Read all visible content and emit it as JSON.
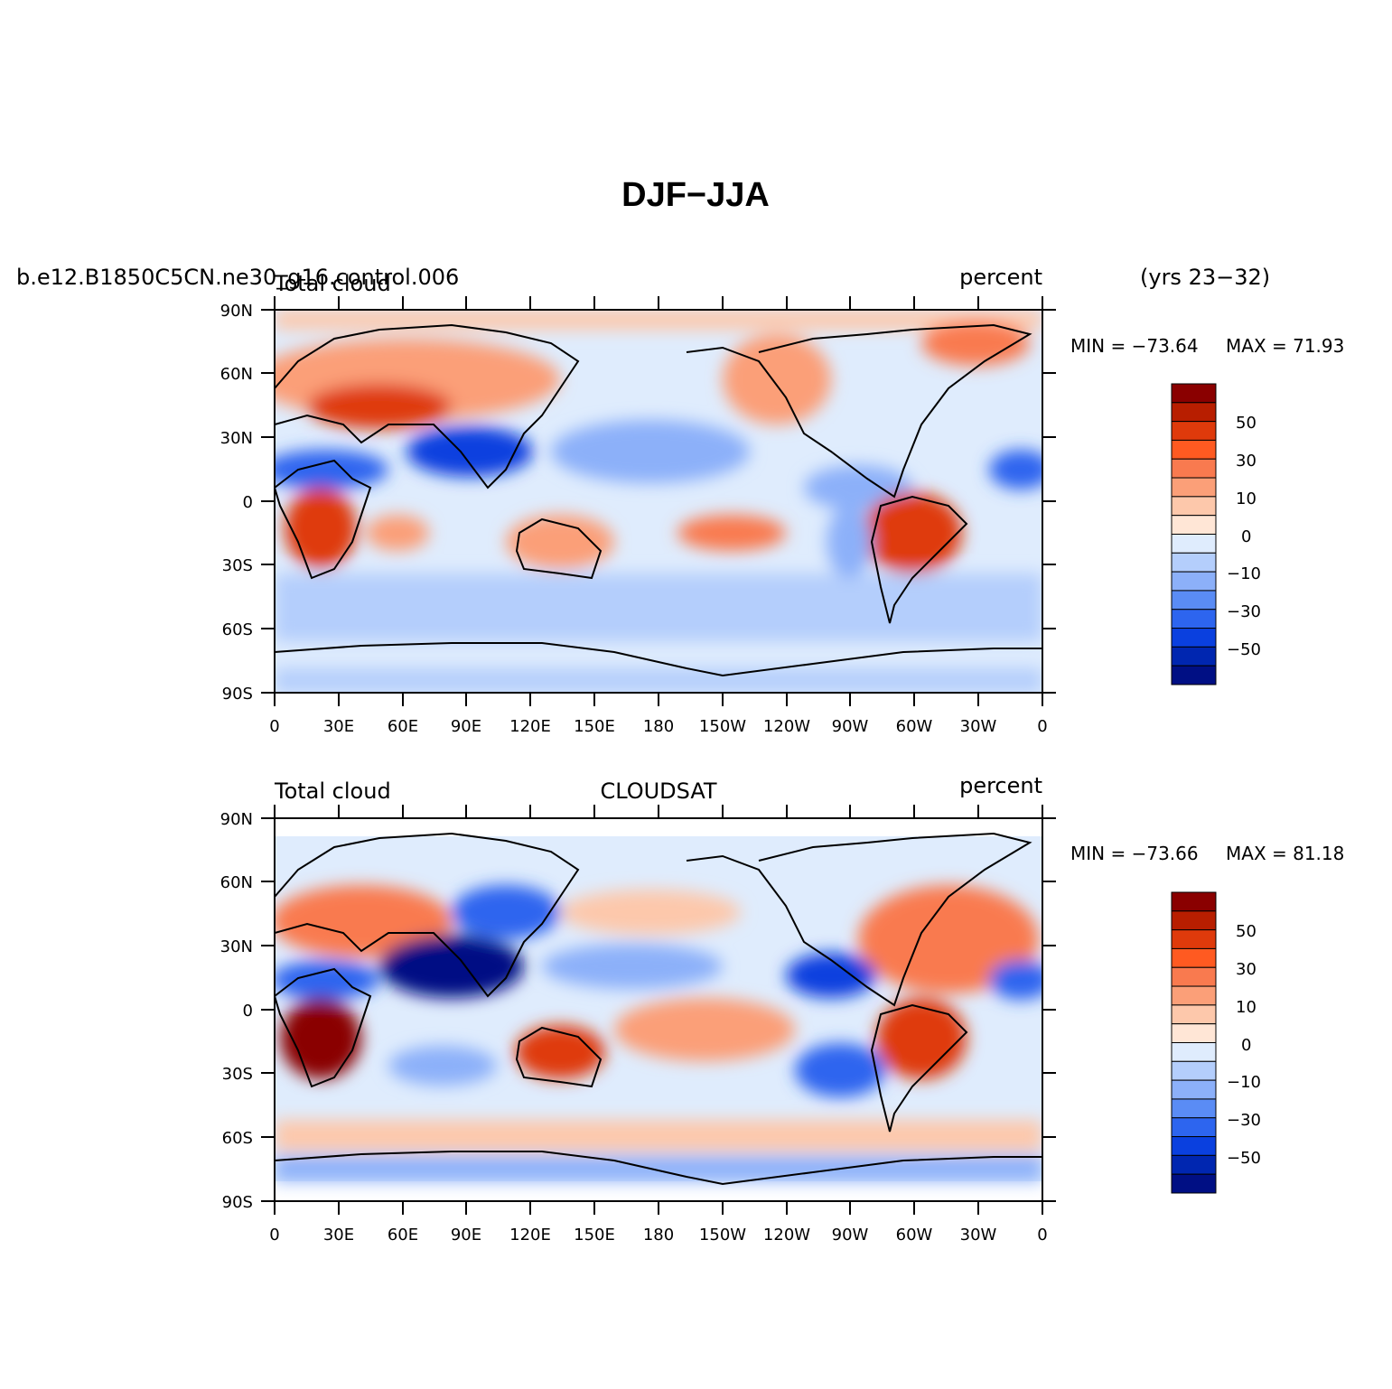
{
  "figure": {
    "title": "DJF-JJA",
    "case_name": "b.e12.B1850C5CN.ne30_g16.control.006",
    "years_label": "(yrs 23-32)"
  },
  "panels": [
    {
      "id": "model",
      "left_label": "Total cloud",
      "center_label": "",
      "right_label": "percent",
      "min_label": "MIN = -73.64",
      "max_label": "MAX =  71.93"
    },
    {
      "id": "obs",
      "left_label": "Total cloud",
      "center_label": "CLOUDSAT",
      "right_label": "percent",
      "min_label": "MIN = -73.66",
      "max_label": "MAX =  81.18"
    }
  ],
  "axes": {
    "lat_ticks": [
      "90N",
      "60N",
      "30N",
      "0",
      "30S",
      "60S",
      "90S"
    ],
    "lon_ticks": [
      "0",
      "30E",
      "60E",
      "90E",
      "120E",
      "150E",
      "180",
      "150W",
      "120W",
      "90W",
      "60W",
      "30W",
      "0"
    ]
  },
  "colorbar": {
    "tick_labels": [
      "50",
      "30",
      "10",
      "0",
      "-10",
      "-30",
      "-50"
    ],
    "colors": [
      "#8a0000",
      "#b81e00",
      "#df3a0b",
      "#ff5a21",
      "#f97a4f",
      "#fb9f78",
      "#fdc8ab",
      "#ffe6d6",
      "#dfecfd",
      "#b4cefc",
      "#8cb0f9",
      "#5a8cf5",
      "#2d65ef",
      "#0a40df",
      "#0026b0",
      "#000f84"
    ]
  },
  "chart_data": [
    {
      "type": "heatmap",
      "title": "Total cloud",
      "units": "percent",
      "x_range": [
        0,
        360
      ],
      "y_range": [
        -90,
        90
      ],
      "min": -73.64,
      "max": 71.93,
      "contour_levels": [
        -70,
        -60,
        -50,
        -40,
        -30,
        -20,
        -10,
        0,
        10,
        20,
        30,
        40,
        50,
        60,
        70
      ],
      "features": [
        {
          "region": "Southern Africa",
          "sign": "positive",
          "approx_value": 70
        },
        {
          "region": "Eurasia 45N",
          "sign": "positive",
          "approx_value": 40
        },
        {
          "region": "South America",
          "sign": "positive",
          "approx_value": 60
        },
        {
          "region": "Australia",
          "sign": "positive",
          "approx_value": 40
        },
        {
          "region": "South Asia 20N",
          "sign": "negative",
          "approx_value": -60
        },
        {
          "region": "Tropical Atlantic / Africa 10N",
          "sign": "negative",
          "approx_value": -50
        },
        {
          "region": "North Pacific 20N",
          "sign": "negative",
          "approx_value": -30
        }
      ]
    },
    {
      "type": "heatmap",
      "title": "Total cloud",
      "units": "percent",
      "x_range": [
        0,
        360
      ],
      "y_range": [
        -90,
        90
      ],
      "min": -73.66,
      "max": 81.18,
      "contour_levels": [
        -70,
        -60,
        -50,
        -40,
        -30,
        -20,
        -10,
        0,
        10,
        20,
        30,
        40,
        50,
        60,
        70
      ],
      "features": [
        {
          "region": "Southern Africa",
          "sign": "positive",
          "approx_value": 70
        },
        {
          "region": "South America",
          "sign": "positive",
          "approx_value": 60
        },
        {
          "region": "Australia",
          "sign": "positive",
          "approx_value": 40
        },
        {
          "region": "South Asia 20N",
          "sign": "negative",
          "approx_value": -70
        },
        {
          "region": "Central America 15N",
          "sign": "negative",
          "approx_value": -50
        },
        {
          "region": "Tropical Atlantic 10N",
          "sign": "negative",
          "approx_value": -50
        }
      ]
    }
  ]
}
